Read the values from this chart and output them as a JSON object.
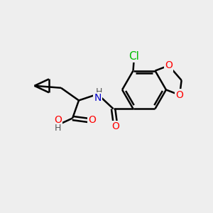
{
  "bg_color": "#eeeeee",
  "bond_color": "#000000",
  "bond_width": 1.8,
  "atom_colors": {
    "N": "#0000cc",
    "O": "#ff0000",
    "Cl": "#00bb00",
    "H": "#555555"
  },
  "font_size": 10,
  "fig_size": [
    3.0,
    3.0
  ],
  "dpi": 100
}
